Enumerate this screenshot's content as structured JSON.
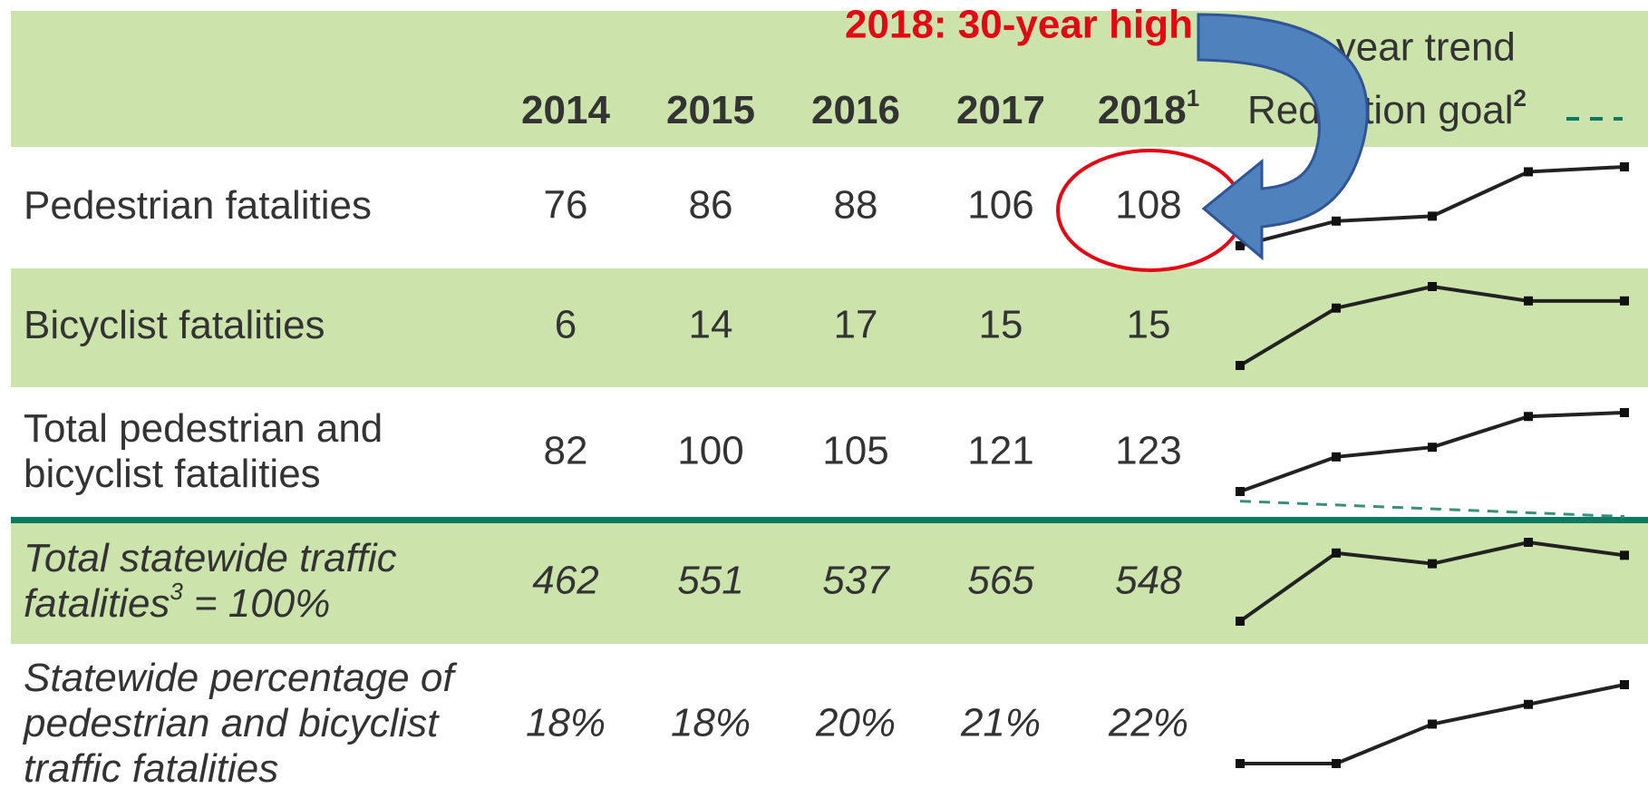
{
  "annotation": "2018: 30-year high",
  "header": {
    "years": [
      "2014",
      "2015",
      "2016",
      "2017",
      "2018"
    ],
    "last_year_note": "1",
    "trend": "Five-year trend",
    "goal": "Reduction goal",
    "goal_note": "2"
  },
  "rows": [
    {
      "label": [
        "Pedestrian fatalities"
      ],
      "values": [
        76,
        86,
        88,
        106,
        108
      ],
      "italic": false
    },
    {
      "label": [
        "Bicyclist fatalities"
      ],
      "values": [
        6,
        14,
        17,
        15,
        15
      ],
      "italic": false
    },
    {
      "label": [
        "Total pedestrian and",
        "bicyclist fatalities"
      ],
      "values": [
        82,
        100,
        105,
        121,
        123
      ],
      "goal": [
        77,
        69
      ],
      "italic": false
    },
    {
      "label": [
        "Total statewide traffic",
        "fatalities"
      ],
      "label_note": "3",
      "label_suffix": "= 100%",
      "values": [
        462,
        551,
        537,
        565,
        548
      ],
      "italic": true
    },
    {
      "label": [
        "Statewide percentage of",
        "pedestrian and bicyclist",
        "traffic fatalities"
      ],
      "values": [
        18,
        18,
        20,
        21,
        22
      ],
      "value_labels": [
        "18%",
        "18%",
        "20%",
        "21%",
        "22%"
      ],
      "italic": true
    }
  ]
}
